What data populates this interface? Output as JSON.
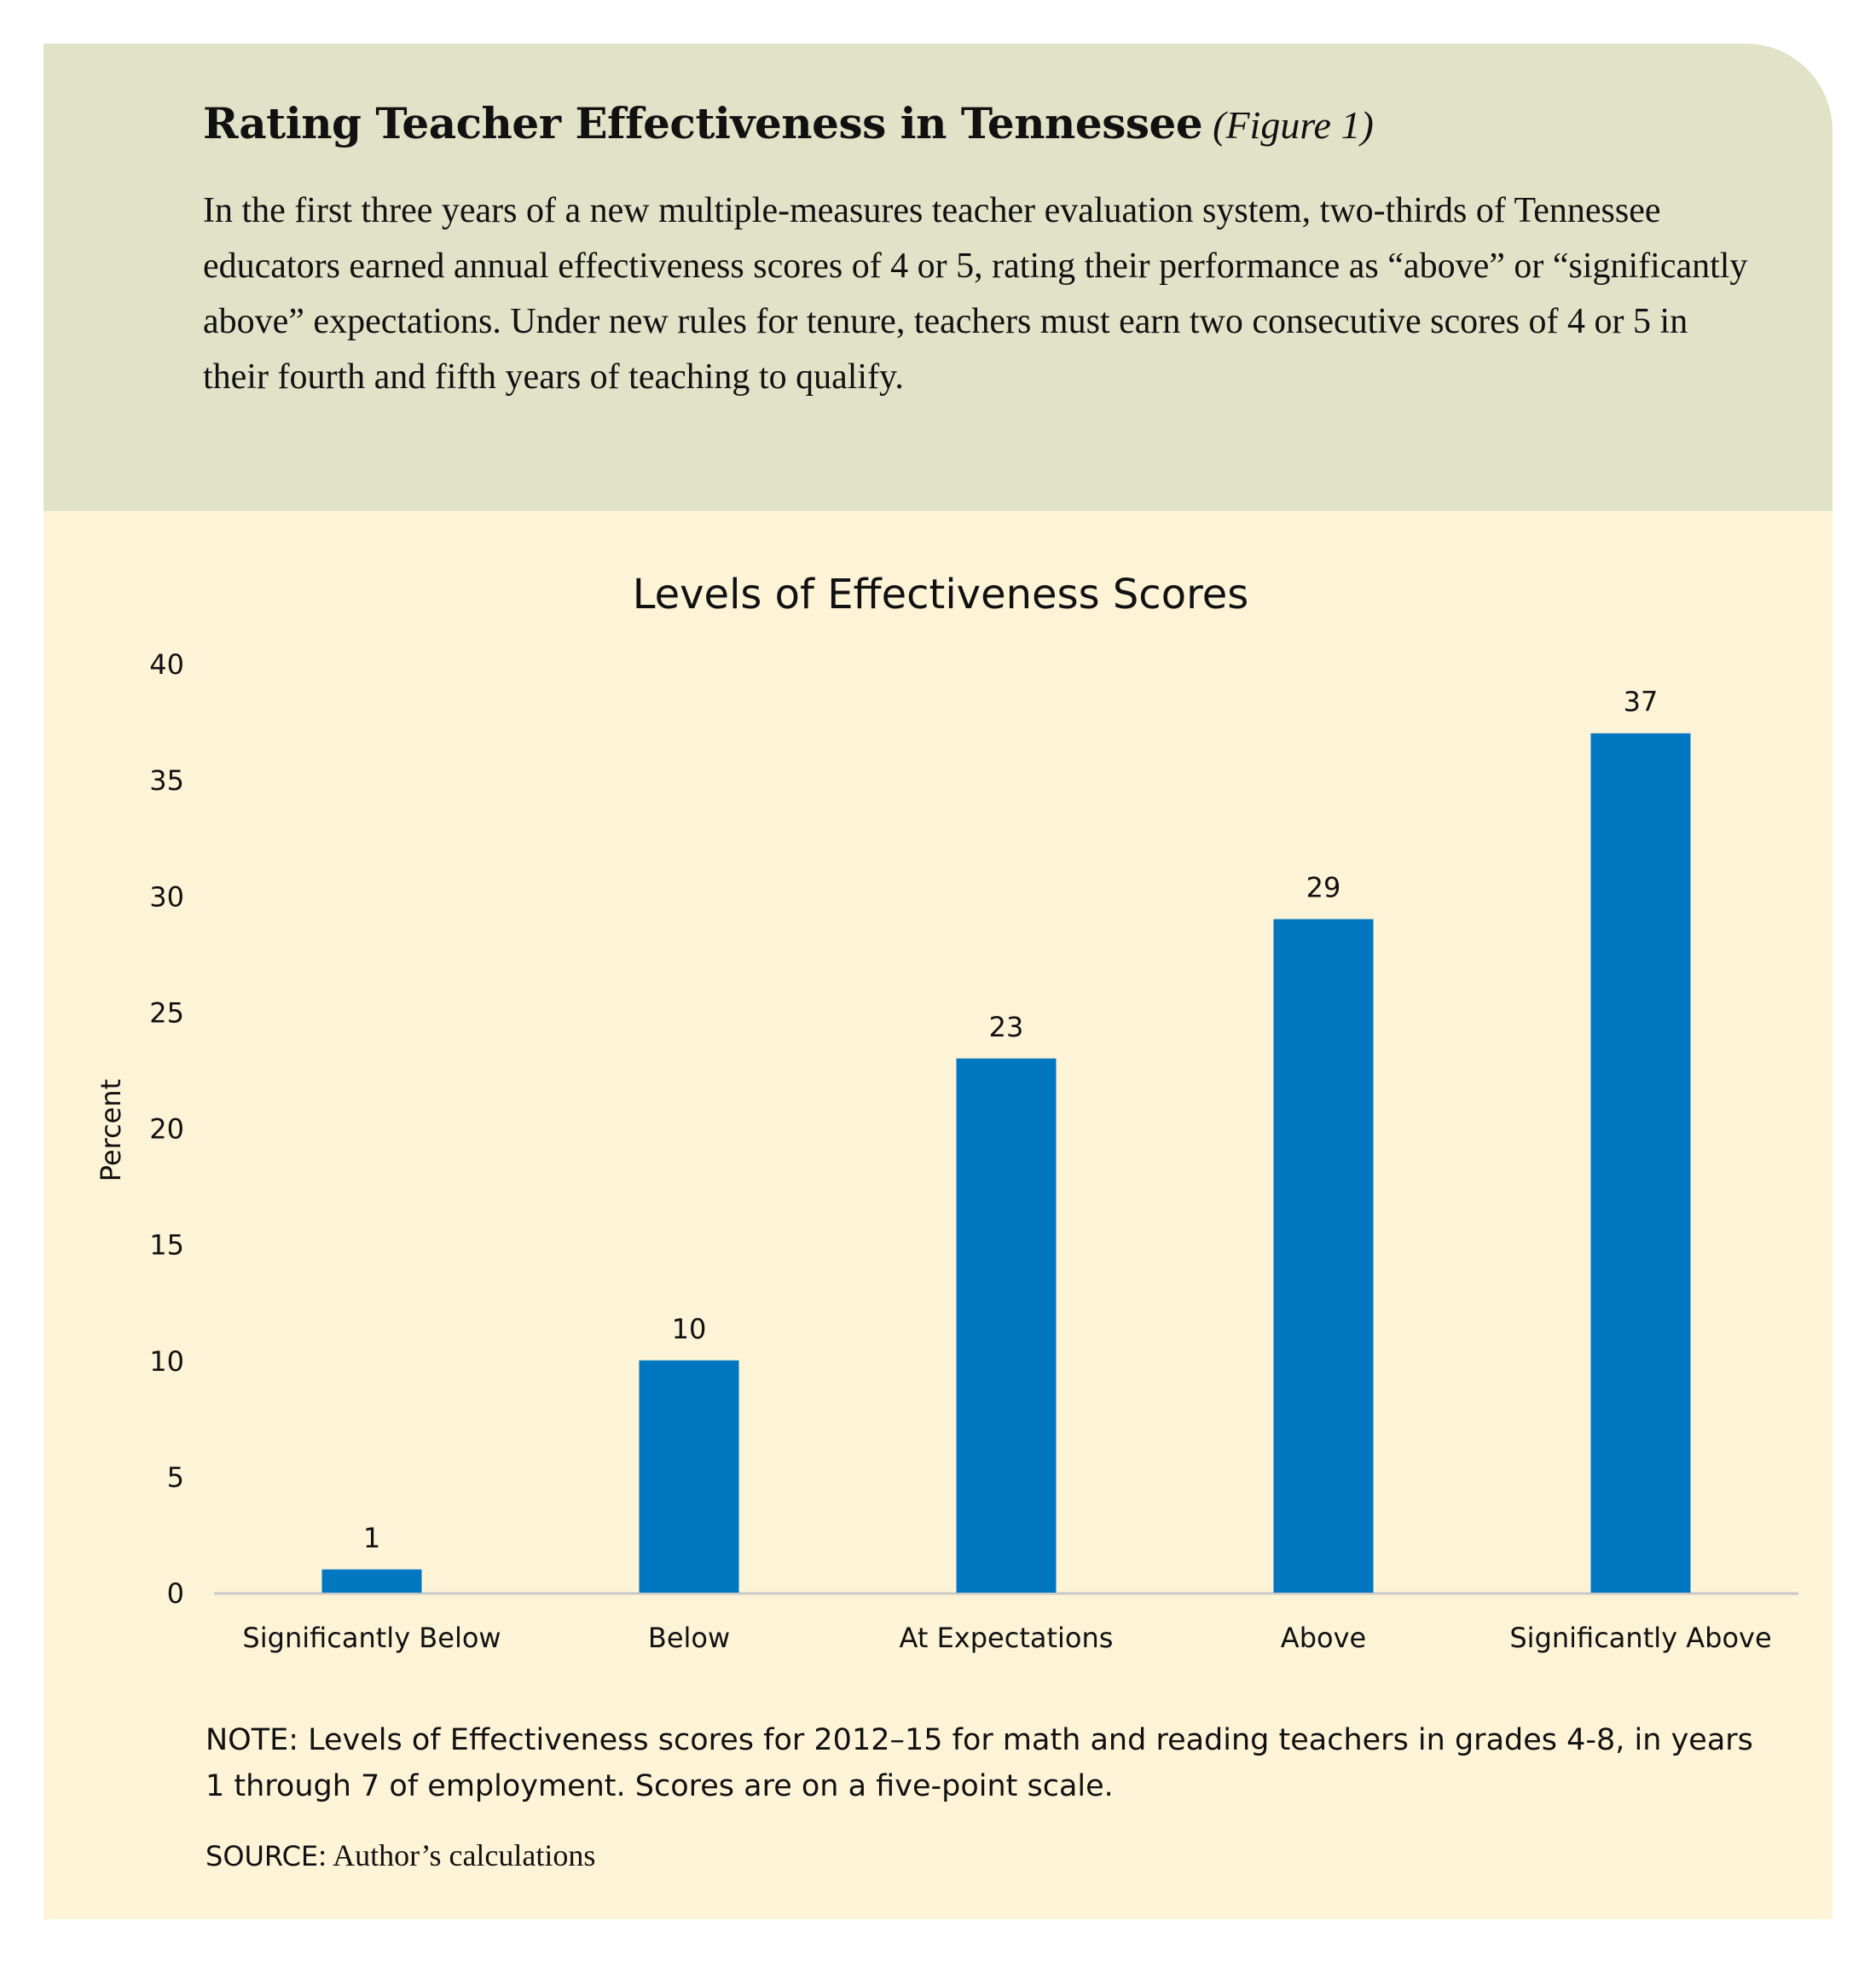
{
  "header": {
    "title": "Rating Teacher Effectiveness in Tennessee",
    "figure_label": "(Figure 1)",
    "intro": "In the first three years of a new multiple-measures teacher evaluation system, two-thirds of Tennessee educators earned annual effectiveness scores of 4 or 5, rating their performance as “above” or “significantly above” expectations. Under new rules for tenure, teachers must earn two consecutive scores of 4 or 5 in their fourth and fifth years of teaching to qualify."
  },
  "chart_data": {
    "type": "bar",
    "title": "Levels of Effectiveness Scores",
    "xlabel": "",
    "ylabel": "Percent",
    "categories": [
      "Significantly Below",
      "Below",
      "At Expectations",
      "Above",
      "Significantly Above"
    ],
    "values": [
      1,
      10,
      23,
      29,
      37
    ],
    "data_labels": [
      "1",
      "10",
      "23",
      "29",
      "37"
    ],
    "ylim": [
      0,
      40
    ],
    "yticks": [
      0,
      5,
      10,
      15,
      20,
      25,
      30,
      35,
      40
    ],
    "grid": false,
    "legend": "none",
    "bar_color": "#0077c0"
  },
  "footer": {
    "note": "NOTE: Levels of Effectiveness scores for 2012–15 for math and reading teachers in grades 4-8, in years 1 through 7 of employment. Scores are on a five-point scale.",
    "source_label": "SOURCE",
    "source_text": ": Author’s calculations"
  },
  "colors": {
    "header_bg": "#e0e3c8",
    "body_bg": "#fdf3d6",
    "bar": "#0077c0",
    "axis": "#c8c8c8"
  }
}
